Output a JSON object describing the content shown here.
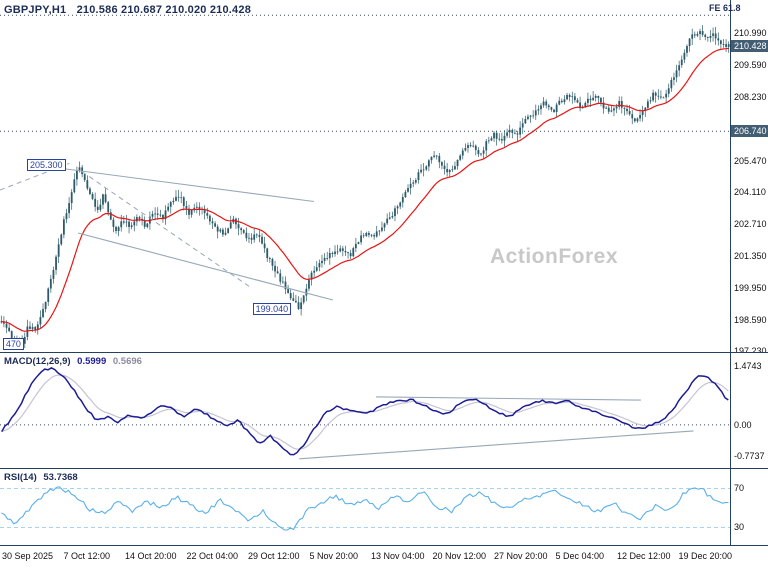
{
  "colors": {
    "candle": "#2c5a68",
    "ma_line": "#e81414",
    "macd_line": "#1c1c94",
    "macd_signal": "#c4c4d4",
    "rsi_line": "#5ab0ea",
    "rsi_level": "#a8d2f2",
    "badge_bg": "#435e73",
    "badge_text": "#ffffff",
    "header_text": "#1c2c54",
    "separator": "#24415f",
    "watermark_text": "#c8c8c8",
    "flag": "#2a43a2",
    "trendline": "#97a8b8",
    "grid_dotted": "#3a4a66",
    "axis_text": "#101010"
  },
  "chart_data": {
    "type": "candlestick",
    "symbol": "GBPJPY",
    "timeframe": "H1",
    "watermark": "ActionForex",
    "header": {
      "symbol_tf": "GBPJPY,H1",
      "ohlc": "210.586 210.687 210.020 210.428",
      "open": "210.586",
      "high": "210.687",
      "low": "210.020",
      "close": "210.428"
    },
    "x_labels": [
      "30 Sep 2025",
      "7 Oct 12:00",
      "14 Oct 20:00",
      "22 Oct 04:00",
      "29 Oct 12:00",
      "5 Nov 20:00",
      "13 Nov 04:00",
      "20 Nov 12:00",
      "27 Nov 20:00",
      "5 Dec 04:00",
      "12 Dec 12:00",
      "19 Dec 20:00"
    ],
    "main": {
      "fe_label": "FE 61.8",
      "ylim": [
        197.19,
        212.42
      ],
      "yticks": [
        "210.990",
        "209.590",
        "208.230",
        "205.470",
        "204.110",
        "202.710",
        "201.350",
        "199.950",
        "198.590",
        "197.230"
      ],
      "badges": [
        {
          "label": "210.428"
        },
        {
          "label": "206.740"
        }
      ],
      "levels_dotted": [
        211.76,
        206.74
      ],
      "candle_count": 280,
      "ma_period": 20,
      "price_anchors": [
        [
          0,
          198.6
        ],
        [
          0.008,
          198.1
        ],
        [
          0.018,
          197.7
        ],
        [
          0.028,
          197.5
        ],
        [
          0.036,
          198.3
        ],
        [
          0.046,
          198.1
        ],
        [
          0.056,
          198.9
        ],
        [
          0.066,
          200.0
        ],
        [
          0.076,
          201.3
        ],
        [
          0.086,
          202.9
        ],
        [
          0.094,
          203.7
        ],
        [
          0.102,
          204.8
        ],
        [
          0.108,
          205.25
        ],
        [
          0.116,
          204.5
        ],
        [
          0.124,
          203.8
        ],
        [
          0.132,
          203.3
        ],
        [
          0.14,
          204.0
        ],
        [
          0.148,
          203.0
        ],
        [
          0.158,
          202.5
        ],
        [
          0.168,
          202.9
        ],
        [
          0.178,
          202.6
        ],
        [
          0.188,
          203.1
        ],
        [
          0.198,
          202.6
        ],
        [
          0.21,
          203.3
        ],
        [
          0.222,
          203.0
        ],
        [
          0.234,
          203.7
        ],
        [
          0.246,
          203.9
        ],
        [
          0.258,
          203.1
        ],
        [
          0.27,
          203.5
        ],
        [
          0.282,
          203.2
        ],
        [
          0.294,
          202.5
        ],
        [
          0.306,
          202.3
        ],
        [
          0.318,
          202.9
        ],
        [
          0.33,
          202.4
        ],
        [
          0.342,
          202.0
        ],
        [
          0.352,
          202.3
        ],
        [
          0.362,
          201.6
        ],
        [
          0.374,
          200.8
        ],
        [
          0.386,
          200.2
        ],
        [
          0.398,
          199.6
        ],
        [
          0.41,
          199.05
        ],
        [
          0.422,
          200.3
        ],
        [
          0.434,
          200.9
        ],
        [
          0.446,
          201.3
        ],
        [
          0.458,
          201.5
        ],
        [
          0.47,
          201.6
        ],
        [
          0.48,
          201.4
        ],
        [
          0.49,
          202.0
        ],
        [
          0.502,
          202.4
        ],
        [
          0.512,
          202.1
        ],
        [
          0.524,
          202.7
        ],
        [
          0.536,
          203.1
        ],
        [
          0.548,
          203.7
        ],
        [
          0.56,
          204.3
        ],
        [
          0.572,
          204.8
        ],
        [
          0.584,
          205.3
        ],
        [
          0.594,
          205.85
        ],
        [
          0.604,
          205.3
        ],
        [
          0.614,
          204.9
        ],
        [
          0.626,
          205.4
        ],
        [
          0.638,
          206.0
        ],
        [
          0.648,
          206.2
        ],
        [
          0.658,
          205.7
        ],
        [
          0.668,
          206.3
        ],
        [
          0.678,
          206.6
        ],
        [
          0.688,
          206.3
        ],
        [
          0.698,
          206.8
        ],
        [
          0.708,
          206.6
        ],
        [
          0.718,
          207.1
        ],
        [
          0.728,
          207.4
        ],
        [
          0.738,
          207.8
        ],
        [
          0.748,
          208.0
        ],
        [
          0.758,
          207.6
        ],
        [
          0.768,
          208.0
        ],
        [
          0.778,
          208.35
        ],
        [
          0.788,
          208.1
        ],
        [
          0.798,
          207.7
        ],
        [
          0.808,
          208.1
        ],
        [
          0.818,
          208.3
        ],
        [
          0.828,
          207.8
        ],
        [
          0.838,
          207.5
        ],
        [
          0.848,
          208.0
        ],
        [
          0.858,
          207.6
        ],
        [
          0.868,
          207.2
        ],
        [
          0.878,
          207.4
        ],
        [
          0.888,
          207.9
        ],
        [
          0.898,
          208.4
        ],
        [
          0.908,
          208.1
        ],
        [
          0.918,
          208.7
        ],
        [
          0.928,
          209.3
        ],
        [
          0.938,
          210.1
        ],
        [
          0.948,
          210.8
        ],
        [
          0.958,
          211.05
        ],
        [
          0.968,
          210.75
        ],
        [
          0.978,
          210.95
        ],
        [
          0.988,
          210.55
        ],
        [
          1,
          210.45
        ]
      ],
      "trendlines": [
        {
          "x1": 0.08,
          "y1": 205.15,
          "x2": 0.43,
          "y2": 203.7,
          "dash": false
        },
        {
          "x1": 0.107,
          "y1": 202.34,
          "x2": 0.456,
          "y2": 199.44,
          "dash": false
        },
        {
          "x1": 0.0,
          "y1": 204.2,
          "x2": 0.095,
          "y2": 205.35,
          "dash": true
        },
        {
          "x1": 0.112,
          "y1": 205.0,
          "x2": 0.345,
          "y2": 199.95,
          "dash": true
        }
      ],
      "labels": [
        {
          "text": "205.300",
          "x": 0.037,
          "price": 205.3
        },
        {
          "text": "199.040",
          "x": 0.346,
          "price": 199.04
        },
        {
          "text": "470",
          "x": 0.004,
          "price": 197.55
        }
      ]
    },
    "macd": {
      "name": "MACD(12,26,9)",
      "value1": "0.5999",
      "value2": "0.5696",
      "ylim": [
        -1.08,
        1.8
      ],
      "yticks": [
        "1.4743",
        "0.00",
        "-0.7737"
      ],
      "zero_level": 0,
      "points": 220,
      "signal_period": 8,
      "anchors": [
        [
          0,
          -0.15
        ],
        [
          0.02,
          0.3
        ],
        [
          0.04,
          1.0
        ],
        [
          0.055,
          1.35
        ],
        [
          0.07,
          1.42
        ],
        [
          0.085,
          1.2
        ],
        [
          0.1,
          0.85
        ],
        [
          0.115,
          0.45
        ],
        [
          0.13,
          0.12
        ],
        [
          0.145,
          0.2
        ],
        [
          0.16,
          0.08
        ],
        [
          0.175,
          0.25
        ],
        [
          0.19,
          0.15
        ],
        [
          0.205,
          0.3
        ],
        [
          0.22,
          0.48
        ],
        [
          0.235,
          0.42
        ],
        [
          0.25,
          0.18
        ],
        [
          0.265,
          0.38
        ],
        [
          0.28,
          0.3
        ],
        [
          0.295,
          0.1
        ],
        [
          0.31,
          -0.05
        ],
        [
          0.325,
          0.12
        ],
        [
          0.34,
          -0.2
        ],
        [
          0.355,
          -0.48
        ],
        [
          0.37,
          -0.28
        ],
        [
          0.385,
          -0.55
        ],
        [
          0.4,
          -0.77
        ],
        [
          0.415,
          -0.55
        ],
        [
          0.43,
          -0.1
        ],
        [
          0.445,
          0.3
        ],
        [
          0.46,
          0.45
        ],
        [
          0.475,
          0.4
        ],
        [
          0.49,
          0.35
        ],
        [
          0.505,
          0.3
        ],
        [
          0.52,
          0.45
        ],
        [
          0.535,
          0.55
        ],
        [
          0.55,
          0.6
        ],
        [
          0.565,
          0.62
        ],
        [
          0.58,
          0.5
        ],
        [
          0.595,
          0.35
        ],
        [
          0.61,
          0.25
        ],
        [
          0.625,
          0.45
        ],
        [
          0.64,
          0.6
        ],
        [
          0.655,
          0.62
        ],
        [
          0.67,
          0.45
        ],
        [
          0.685,
          0.28
        ],
        [
          0.7,
          0.22
        ],
        [
          0.715,
          0.42
        ],
        [
          0.73,
          0.55
        ],
        [
          0.745,
          0.6
        ],
        [
          0.76,
          0.55
        ],
        [
          0.775,
          0.62
        ],
        [
          0.79,
          0.5
        ],
        [
          0.805,
          0.38
        ],
        [
          0.82,
          0.3
        ],
        [
          0.835,
          0.22
        ],
        [
          0.85,
          0.1
        ],
        [
          0.865,
          -0.03
        ],
        [
          0.88,
          -0.12
        ],
        [
          0.895,
          0.02
        ],
        [
          0.91,
          0.12
        ],
        [
          0.925,
          0.4
        ],
        [
          0.94,
          0.8
        ],
        [
          0.955,
          1.15
        ],
        [
          0.965,
          1.27
        ],
        [
          0.975,
          1.15
        ],
        [
          0.985,
          0.95
        ],
        [
          1,
          0.6
        ]
      ],
      "trendlines": [
        {
          "x1": 0.515,
          "y1": 0.7,
          "x2": 0.878,
          "y2": 0.62,
          "dash": false
        },
        {
          "x1": 0.41,
          "y1": -0.85,
          "x2": 0.95,
          "y2": -0.15,
          "dash": false
        }
      ]
    },
    "rsi": {
      "name": "RSI(14)",
      "value": "53.7368",
      "ylim": [
        12,
        90
      ],
      "yticks": [
        "70",
        "30"
      ],
      "levels_dashed": [
        70,
        30
      ],
      "points": 240,
      "anchors": [
        [
          0,
          44
        ],
        [
          0.02,
          34
        ],
        [
          0.04,
          50
        ],
        [
          0.06,
          66
        ],
        [
          0.08,
          71
        ],
        [
          0.1,
          64
        ],
        [
          0.12,
          49
        ],
        [
          0.14,
          44
        ],
        [
          0.16,
          56
        ],
        [
          0.18,
          47
        ],
        [
          0.2,
          57
        ],
        [
          0.22,
          50
        ],
        [
          0.24,
          61
        ],
        [
          0.26,
          54
        ],
        [
          0.28,
          44
        ],
        [
          0.3,
          58
        ],
        [
          0.32,
          47
        ],
        [
          0.34,
          38
        ],
        [
          0.36,
          47
        ],
        [
          0.38,
          31
        ],
        [
          0.4,
          27
        ],
        [
          0.42,
          47
        ],
        [
          0.44,
          56
        ],
        [
          0.46,
          62
        ],
        [
          0.48,
          53
        ],
        [
          0.5,
          59
        ],
        [
          0.52,
          49
        ],
        [
          0.54,
          63
        ],
        [
          0.56,
          57
        ],
        [
          0.58,
          66
        ],
        [
          0.6,
          51
        ],
        [
          0.62,
          47
        ],
        [
          0.64,
          61
        ],
        [
          0.66,
          66
        ],
        [
          0.68,
          54
        ],
        [
          0.7,
          49
        ],
        [
          0.72,
          60
        ],
        [
          0.74,
          63
        ],
        [
          0.76,
          69
        ],
        [
          0.78,
          59
        ],
        [
          0.8,
          54
        ],
        [
          0.82,
          46
        ],
        [
          0.84,
          56
        ],
        [
          0.86,
          44
        ],
        [
          0.88,
          39
        ],
        [
          0.9,
          53
        ],
        [
          0.92,
          47
        ],
        [
          0.94,
          66
        ],
        [
          0.96,
          72
        ],
        [
          0.98,
          58
        ],
        [
          1,
          54
        ]
      ]
    }
  }
}
